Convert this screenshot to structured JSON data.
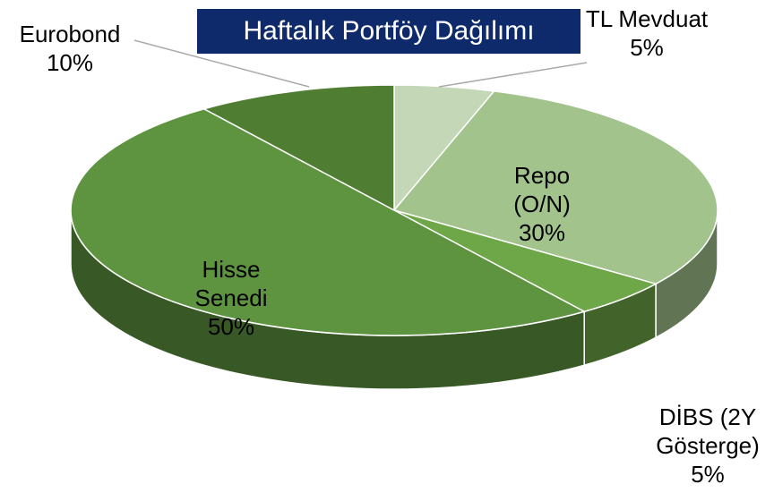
{
  "chart_data": {
    "type": "pie",
    "title": "Haftalık Portföy Dağılımı",
    "categories": [
      "TL Mevduat",
      "Repo (O/N)",
      "DİBS (2Y Gösterge)",
      "Hisse Senedi",
      "Eurobond"
    ],
    "values": [
      5,
      30,
      5,
      50,
      10
    ],
    "value_labels": [
      "5%",
      "30%",
      "5%",
      "50%",
      "10%"
    ],
    "colors": [
      "#c4d8b8",
      "#a2c38c",
      "#6ea748",
      "#5e9440",
      "#4f7d31"
    ]
  }
}
